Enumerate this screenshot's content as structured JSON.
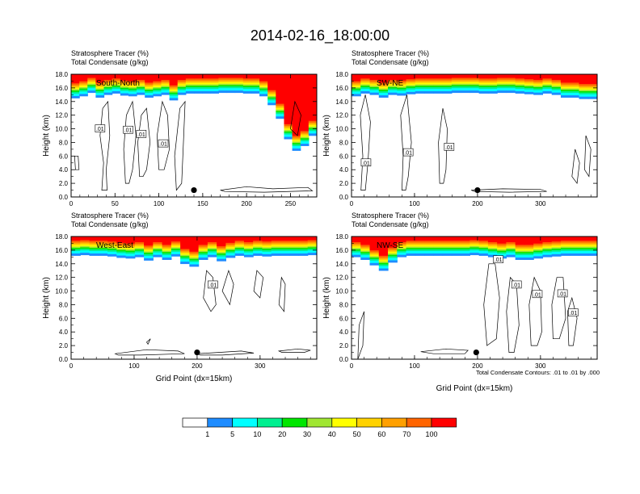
{
  "title": "2014-02-16_18:00:00",
  "panel_label_top": "Stratosphere Tracer   (%)",
  "panel_label_bottom": "Total Condensate   (g/kg)",
  "ylabel": "Height (km)",
  "xlabel": "Grid Point (dx=15km)",
  "footnote": "Total Condensate Contours: .01 to .01 by .000",
  "contour_label": ".01",
  "colorbar": {
    "levels": [
      "1",
      "5",
      "10",
      "20",
      "30",
      "40",
      "50",
      "60",
      "70",
      "100"
    ],
    "colors": [
      "#ffffff",
      "#1e8cff",
      "#00ffff",
      "#00f090",
      "#00e600",
      "#a0e632",
      "#ffff00",
      "#ffd200",
      "#ffa000",
      "#ff6400",
      "#ff0000"
    ]
  },
  "chart_data": [
    {
      "type": "heatmap",
      "name": "South-North",
      "xlim": [
        0,
        280
      ],
      "ylim": [
        0,
        18
      ],
      "xticks": [
        0,
        50,
        100,
        150,
        200,
        250
      ],
      "yticks": [
        "0.0",
        "2.0",
        "4.0",
        "6.0",
        "8.0",
        "10.0",
        "12.0",
        "14.0",
        "16.0",
        "18.0"
      ],
      "tracer_bottom_km": [
        14.5,
        14.8,
        15.3,
        14.6,
        15.0,
        15.2,
        14.9,
        14.8,
        15.0,
        14.6,
        14.8,
        15.0,
        14.2,
        15.0,
        15.2,
        15.2,
        15.2,
        15.2,
        15.3,
        15.3,
        15.3,
        15.2,
        15.2,
        14.8,
        13.5,
        11.5,
        8.5,
        6.8,
        7.5,
        9.0
      ],
      "marker": [
        140,
        1.0
      ],
      "contour_labels": [
        [
          33,
          10.0
        ],
        [
          65,
          9.8
        ],
        [
          80,
          9.2
        ],
        [
          105,
          7.8
        ]
      ]
    },
    {
      "type": "heatmap",
      "name": "SW-NE",
      "xlim": [
        0,
        390
      ],
      "ylim": [
        0,
        18
      ],
      "xticks": [
        0,
        100,
        200,
        300
      ],
      "yticks": [
        "0.0",
        "2.0",
        "4.0",
        "6.0",
        "8.0",
        "10.0",
        "12.0",
        "14.0",
        "16.0",
        "18.0"
      ],
      "tracer_bottom_km": [
        14.8,
        15.2,
        15.0,
        14.6,
        15.0,
        14.9,
        15.1,
        15.2,
        15.2,
        15.2,
        15.2,
        15.3,
        15.3,
        15.3,
        15.2,
        15.2,
        15.3,
        15.3,
        15.2,
        15.1,
        15.0,
        15.2,
        15.0,
        14.6,
        14.6,
        14.4,
        14.4
      ],
      "marker": [
        200,
        1.0
      ],
      "contour_labels": [
        [
          23,
          5.0
        ],
        [
          90,
          6.5
        ],
        [
          155,
          7.3
        ]
      ]
    },
    {
      "type": "heatmap",
      "name": "West-East",
      "xlim": [
        0,
        390
      ],
      "ylim": [
        0,
        18
      ],
      "xticks": [
        0,
        100,
        200,
        300
      ],
      "yticks": [
        "0.0",
        "2.0",
        "4.0",
        "6.0",
        "8.0",
        "10.0",
        "12.0",
        "14.0",
        "16.0",
        "18.0"
      ],
      "tracer_bottom_km": [
        15.2,
        15.3,
        15.2,
        15.2,
        15.1,
        14.9,
        14.8,
        15.0,
        14.5,
        15.0,
        14.6,
        15.1,
        14.0,
        13.6,
        14.6,
        15.0,
        14.4,
        14.9,
        15.2,
        15.0,
        15.2,
        15.1,
        15.2,
        15.2,
        15.2,
        15.2,
        15.3
      ],
      "marker": [
        200,
        1.0
      ],
      "contour_labels": [
        [
          225,
          10.9
        ]
      ]
    },
    {
      "type": "heatmap",
      "name": "NW-SE",
      "xlim": [
        0,
        390
      ],
      "ylim": [
        0,
        18
      ],
      "xticks": [
        0,
        100,
        200,
        300
      ],
      "yticks": [
        "0.0",
        "2.0",
        "4.0",
        "6.0",
        "8.0",
        "10.0",
        "12.0",
        "14.0",
        "16.0",
        "18.0"
      ],
      "tracer_bottom_km": [
        15.0,
        14.6,
        13.8,
        13.0,
        14.2,
        15.0,
        15.2,
        15.2,
        15.2,
        15.2,
        15.2,
        15.2,
        15.2,
        15.3,
        15.2,
        15.0,
        14.8,
        15.0,
        14.6,
        14.6,
        14.8,
        15.0,
        15.1,
        15.2,
        15.2,
        15.2,
        15.2
      ],
      "marker": [
        198,
        1.0
      ],
      "contour_labels": [
        [
          233,
          14.6
        ],
        [
          262,
          10.9
        ],
        [
          295,
          9.5
        ],
        [
          335,
          9.6
        ],
        [
          352,
          6.8
        ]
      ]
    }
  ]
}
